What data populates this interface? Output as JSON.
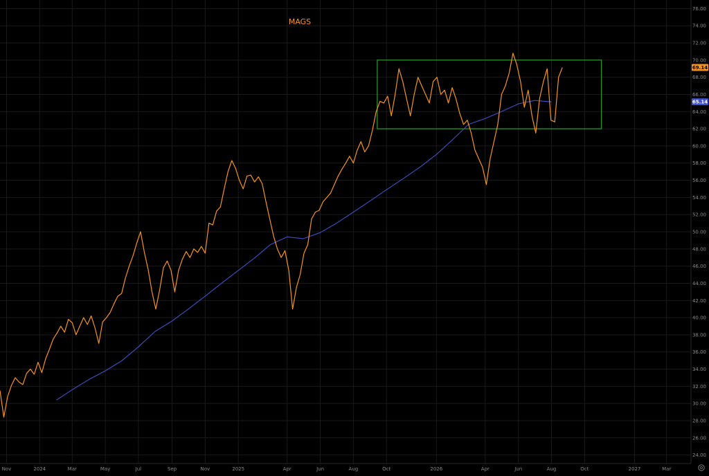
{
  "chart_data": {
    "type": "line",
    "title": "MAGS",
    "grid": true,
    "y_axis_position": "right",
    "ylim": [
      23,
      77
    ],
    "y_ticks": [
      "24.00",
      "26.00",
      "28.00",
      "30.00",
      "32.00",
      "34.00",
      "36.00",
      "38.00",
      "40.00",
      "42.00",
      "44.00",
      "46.00",
      "48.00",
      "50.00",
      "52.00",
      "54.00",
      "56.00",
      "58.00",
      "60.00",
      "62.00",
      "64.00",
      "66.00",
      "68.00",
      "70.00",
      "72.00",
      "74.00",
      "76.00"
    ],
    "x_ticks": [
      {
        "date": "2023-11-01",
        "label": "Nov"
      },
      {
        "date": "2024-01-01",
        "label": "2024"
      },
      {
        "date": "2024-03-01",
        "label": "Mar"
      },
      {
        "date": "2024-05-01",
        "label": "May"
      },
      {
        "date": "2024-07-01",
        "label": "Jul"
      },
      {
        "date": "2024-09-01",
        "label": "Sep"
      },
      {
        "date": "2024-11-01",
        "label": "Nov"
      },
      {
        "date": "2025-01-01",
        "label": "2025"
      },
      {
        "date": "2025-04-01",
        "label": "Apr"
      },
      {
        "date": "2025-06-01",
        "label": "Jun"
      },
      {
        "date": "2025-08-01",
        "label": "Aug"
      },
      {
        "date": "2025-10-01",
        "label": "Oct"
      },
      {
        "date": "2026-01-01",
        "label": "2026"
      },
      {
        "date": "2026-04-01",
        "label": "Apr"
      },
      {
        "date": "2026-06-01",
        "label": "Jun"
      },
      {
        "date": "2026-08-01",
        "label": "Aug"
      },
      {
        "date": "2026-10-01",
        "label": "Oct"
      },
      {
        "date": "2027-01-01",
        "label": "2027"
      },
      {
        "date": "2027-03-01",
        "label": "Mar"
      }
    ],
    "xlim": [
      "2023-10-20",
      "2027-04-15"
    ],
    "series": [
      {
        "color": "#f7941d",
        "last_value_label": "69.14",
        "points": [
          [
            "2023-10-20",
            31.5
          ],
          [
            "2023-10-27",
            28.4
          ],
          [
            "2023-11-03",
            30.8
          ],
          [
            "2023-11-10",
            32.1
          ],
          [
            "2023-11-17",
            33.0
          ],
          [
            "2023-11-24",
            32.5
          ],
          [
            "2023-12-01",
            32.2
          ],
          [
            "2023-12-08",
            33.5
          ],
          [
            "2023-12-15",
            34.0
          ],
          [
            "2023-12-22",
            33.4
          ],
          [
            "2023-12-29",
            34.8
          ],
          [
            "2024-01-05",
            33.6
          ],
          [
            "2024-01-12",
            35.2
          ],
          [
            "2024-01-19",
            36.3
          ],
          [
            "2024-01-26",
            37.5
          ],
          [
            "2024-02-02",
            38.2
          ],
          [
            "2024-02-09",
            39.0
          ],
          [
            "2024-02-16",
            38.3
          ],
          [
            "2024-02-23",
            39.8
          ],
          [
            "2024-03-01",
            39.4
          ],
          [
            "2024-03-08",
            38.0
          ],
          [
            "2024-03-15",
            39.0
          ],
          [
            "2024-03-22",
            40.0
          ],
          [
            "2024-03-29",
            39.2
          ],
          [
            "2024-04-05",
            40.2
          ],
          [
            "2024-04-12",
            38.8
          ],
          [
            "2024-04-19",
            37.0
          ],
          [
            "2024-04-26",
            39.5
          ],
          [
            "2024-05-03",
            40.0
          ],
          [
            "2024-05-10",
            40.6
          ],
          [
            "2024-05-17",
            41.6
          ],
          [
            "2024-05-24",
            42.5
          ],
          [
            "2024-05-31",
            42.8
          ],
          [
            "2024-06-07",
            44.6
          ],
          [
            "2024-06-14",
            46.0
          ],
          [
            "2024-06-21",
            47.2
          ],
          [
            "2024-06-28",
            48.7
          ],
          [
            "2024-07-05",
            50.0
          ],
          [
            "2024-07-12",
            47.6
          ],
          [
            "2024-07-19",
            45.6
          ],
          [
            "2024-07-26",
            43.0
          ],
          [
            "2024-08-02",
            41.0
          ],
          [
            "2024-08-09",
            43.2
          ],
          [
            "2024-08-16",
            45.8
          ],
          [
            "2024-08-23",
            46.6
          ],
          [
            "2024-08-30",
            45.5
          ],
          [
            "2024-09-06",
            43.0
          ],
          [
            "2024-09-13",
            45.5
          ],
          [
            "2024-09-20",
            46.8
          ],
          [
            "2024-09-27",
            47.7
          ],
          [
            "2024-10-04",
            47.0
          ],
          [
            "2024-10-11",
            48.0
          ],
          [
            "2024-10-18",
            47.6
          ],
          [
            "2024-10-25",
            48.3
          ],
          [
            "2024-11-01",
            47.5
          ],
          [
            "2024-11-08",
            51.0
          ],
          [
            "2024-11-15",
            50.8
          ],
          [
            "2024-11-22",
            52.4
          ],
          [
            "2024-11-29",
            52.9
          ],
          [
            "2024-12-06",
            55.0
          ],
          [
            "2024-12-13",
            57.0
          ],
          [
            "2024-12-20",
            58.3
          ],
          [
            "2024-12-27",
            57.4
          ],
          [
            "2025-01-03",
            56.0
          ],
          [
            "2025-01-10",
            55.0
          ],
          [
            "2025-01-17",
            56.5
          ],
          [
            "2025-01-24",
            56.6
          ],
          [
            "2025-01-31",
            55.8
          ],
          [
            "2025-02-07",
            56.4
          ],
          [
            "2025-02-14",
            55.6
          ],
          [
            "2025-02-21",
            53.5
          ],
          [
            "2025-02-28",
            51.5
          ],
          [
            "2025-03-07",
            49.5
          ],
          [
            "2025-03-14",
            48.0
          ],
          [
            "2025-03-21",
            47.0
          ],
          [
            "2025-03-28",
            47.8
          ],
          [
            "2025-04-04",
            45.5
          ],
          [
            "2025-04-11",
            41.0
          ],
          [
            "2025-04-18",
            43.5
          ],
          [
            "2025-04-25",
            45.0
          ],
          [
            "2025-05-02",
            47.5
          ],
          [
            "2025-05-09",
            48.5
          ],
          [
            "2025-05-16",
            51.5
          ],
          [
            "2025-05-23",
            52.3
          ],
          [
            "2025-05-30",
            52.5
          ],
          [
            "2025-06-06",
            53.5
          ],
          [
            "2025-06-13",
            54.0
          ],
          [
            "2025-06-20",
            54.5
          ],
          [
            "2025-06-27",
            55.5
          ],
          [
            "2025-07-04",
            56.5
          ],
          [
            "2025-07-11",
            57.3
          ],
          [
            "2025-07-18",
            58.0
          ],
          [
            "2025-07-25",
            58.8
          ],
          [
            "2025-08-01",
            58.0
          ],
          [
            "2025-08-08",
            59.5
          ],
          [
            "2025-08-15",
            60.5
          ],
          [
            "2025-08-22",
            59.3
          ],
          [
            "2025-08-29",
            60.0
          ],
          [
            "2025-09-05",
            61.8
          ],
          [
            "2025-09-12",
            64.0
          ],
          [
            "2025-09-19",
            65.2
          ],
          [
            "2025-09-26",
            65.0
          ],
          [
            "2025-10-03",
            65.8
          ],
          [
            "2025-10-10",
            63.5
          ],
          [
            "2025-10-17",
            66.0
          ],
          [
            "2025-10-24",
            69.0
          ],
          [
            "2025-10-31",
            67.5
          ],
          [
            "2025-11-07",
            65.5
          ],
          [
            "2025-11-14",
            63.5
          ],
          [
            "2025-11-21",
            66.0
          ],
          [
            "2025-11-28",
            68.0
          ],
          [
            "2025-12-05",
            67.0
          ],
          [
            "2025-12-12",
            66.0
          ],
          [
            "2025-12-19",
            65.0
          ],
          [
            "2025-12-26",
            67.5
          ],
          [
            "2026-01-02",
            68.0
          ],
          [
            "2026-01-09",
            66.0
          ],
          [
            "2026-01-16",
            66.5
          ],
          [
            "2026-01-23",
            65.0
          ],
          [
            "2026-01-30",
            66.8
          ],
          [
            "2026-02-06",
            65.5
          ],
          [
            "2026-02-13",
            63.8
          ],
          [
            "2026-02-20",
            62.5
          ],
          [
            "2026-02-27",
            63.0
          ],
          [
            "2026-03-06",
            61.5
          ],
          [
            "2026-03-13",
            59.5
          ],
          [
            "2026-03-20",
            58.5
          ],
          [
            "2026-03-27",
            57.5
          ],
          [
            "2026-04-03",
            55.5
          ],
          [
            "2026-04-10",
            58.5
          ],
          [
            "2026-04-17",
            60.5
          ],
          [
            "2026-04-24",
            62.5
          ],
          [
            "2026-05-01",
            66.0
          ],
          [
            "2026-05-08",
            67.0
          ],
          [
            "2026-05-15",
            68.5
          ],
          [
            "2026-05-22",
            70.8
          ],
          [
            "2026-05-29",
            69.5
          ],
          [
            "2026-06-05",
            67.5
          ],
          [
            "2026-06-12",
            64.5
          ],
          [
            "2026-06-19",
            66.5
          ],
          [
            "2026-06-26",
            63.5
          ],
          [
            "2026-07-03",
            61.5
          ],
          [
            "2026-07-10",
            65.5
          ],
          [
            "2026-07-17",
            67.5
          ],
          [
            "2026-07-24",
            69.0
          ],
          [
            "2026-07-31",
            63.0
          ],
          [
            "2026-08-07",
            62.8
          ],
          [
            "2026-08-14",
            68.0
          ],
          [
            "2026-08-21",
            69.14
          ]
        ]
      },
      {
        "color": "#3f51c8",
        "last_value_label": "65.14",
        "points": [
          [
            "2024-02-01",
            30.4
          ],
          [
            "2024-03-01",
            31.6
          ],
          [
            "2024-04-01",
            32.8
          ],
          [
            "2024-05-01",
            33.8
          ],
          [
            "2024-06-01",
            35.0
          ],
          [
            "2024-07-01",
            36.6
          ],
          [
            "2024-08-01",
            38.4
          ],
          [
            "2024-09-01",
            39.6
          ],
          [
            "2024-10-01",
            41.0
          ],
          [
            "2024-11-01",
            42.5
          ],
          [
            "2024-12-01",
            44.0
          ],
          [
            "2025-01-01",
            45.5
          ],
          [
            "2025-02-01",
            47.0
          ],
          [
            "2025-03-01",
            48.5
          ],
          [
            "2025-04-01",
            49.4
          ],
          [
            "2025-05-01",
            49.2
          ],
          [
            "2025-06-01",
            49.9
          ],
          [
            "2025-07-01",
            51.0
          ],
          [
            "2025-08-01",
            52.3
          ],
          [
            "2025-09-01",
            53.6
          ],
          [
            "2025-10-01",
            54.9
          ],
          [
            "2025-11-01",
            56.2
          ],
          [
            "2025-12-01",
            57.5
          ],
          [
            "2026-01-01",
            59.0
          ],
          [
            "2026-02-01",
            60.8
          ],
          [
            "2026-03-01",
            62.5
          ],
          [
            "2026-04-01",
            63.2
          ],
          [
            "2026-05-01",
            64.0
          ],
          [
            "2026-06-01",
            64.9
          ],
          [
            "2026-07-01",
            65.3
          ],
          [
            "2026-08-01",
            65.14
          ]
        ]
      }
    ],
    "annotations": [
      {
        "type": "rectangle",
        "color": "#2e9e2e",
        "x0": "2025-09-14",
        "x1": "2026-11-01",
        "y0": 62.0,
        "y1": 70.0
      }
    ]
  },
  "colors": {
    "background": "#000000",
    "grid": "#1a1a1a",
    "price_line": "#f7941d",
    "ma_line": "#3f51c8",
    "box": "#2e9e2e",
    "axis_text": "#8a8a8a"
  },
  "corner_icon": "settings-gear-icon"
}
